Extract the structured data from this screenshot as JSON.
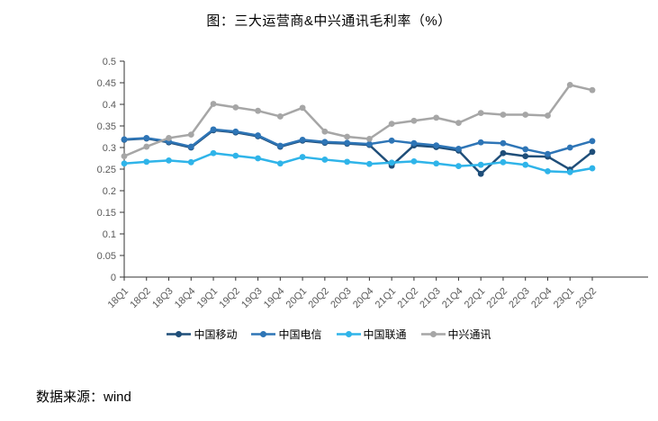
{
  "title": "图：三大运营商&中兴通讯毛利率（%）",
  "source": "数据来源：wind",
  "chart_data": {
    "type": "line",
    "title": "图：三大运营商&中兴通讯毛利率（%）",
    "categories": [
      "18Q1",
      "18Q2",
      "18Q3",
      "18Q4",
      "19Q1",
      "19Q2",
      "19Q3",
      "19Q4",
      "20Q1",
      "20Q2",
      "20Q3",
      "20Q4",
      "21Q1",
      "21Q2",
      "21Q3",
      "21Q4",
      "22Q1",
      "22Q2",
      "22Q3",
      "22Q4",
      "23Q1",
      "23Q2"
    ],
    "series": [
      {
        "id": "china-mobile",
        "name": "中国移动",
        "color": "#1F4E79",
        "values": [
          0.318,
          0.321,
          0.312,
          0.3,
          0.34,
          0.335,
          0.326,
          0.302,
          0.316,
          0.311,
          0.309,
          0.306,
          0.258,
          0.305,
          0.301,
          0.293,
          0.239,
          0.287,
          0.28,
          0.279,
          0.249,
          0.29
        ]
      },
      {
        "id": "china-telecom",
        "name": "中国电信",
        "color": "#2E75B6",
        "values": [
          0.319,
          0.322,
          0.314,
          0.302,
          0.342,
          0.337,
          0.328,
          0.304,
          0.318,
          0.313,
          0.311,
          0.308,
          0.316,
          0.31,
          0.305,
          0.297,
          0.312,
          0.31,
          0.296,
          0.285,
          0.3,
          0.315
        ]
      },
      {
        "id": "china-unicom",
        "name": "中国联通",
        "color": "#2FB4E9",
        "values": [
          0.263,
          0.267,
          0.27,
          0.266,
          0.287,
          0.281,
          0.275,
          0.263,
          0.278,
          0.272,
          0.267,
          0.262,
          0.265,
          0.268,
          0.263,
          0.257,
          0.26,
          0.266,
          0.26,
          0.245,
          0.243,
          0.252
        ]
      },
      {
        "id": "zte",
        "name": "中兴通讯",
        "color": "#A6A6A6",
        "values": [
          0.28,
          0.302,
          0.322,
          0.33,
          0.401,
          0.393,
          0.385,
          0.372,
          0.392,
          0.337,
          0.325,
          0.32,
          0.355,
          0.362,
          0.369,
          0.357,
          0.38,
          0.376,
          0.376,
          0.374,
          0.445,
          0.433
        ]
      }
    ],
    "xlabel": "",
    "ylabel": "",
    "ylim": [
      0,
      0.5
    ],
    "ytick_step": 0.05,
    "ytick_labels": [
      "0",
      "0.05",
      "0.1",
      "0.15",
      "0.2",
      "0.25",
      "0.3",
      "0.35",
      "0.4",
      "0.45",
      "0.5"
    ],
    "grid": false,
    "legend_position": "bottom",
    "marker": "circle"
  },
  "style": {
    "axis_color": "#333333",
    "tick_label_color": "#595959"
  }
}
